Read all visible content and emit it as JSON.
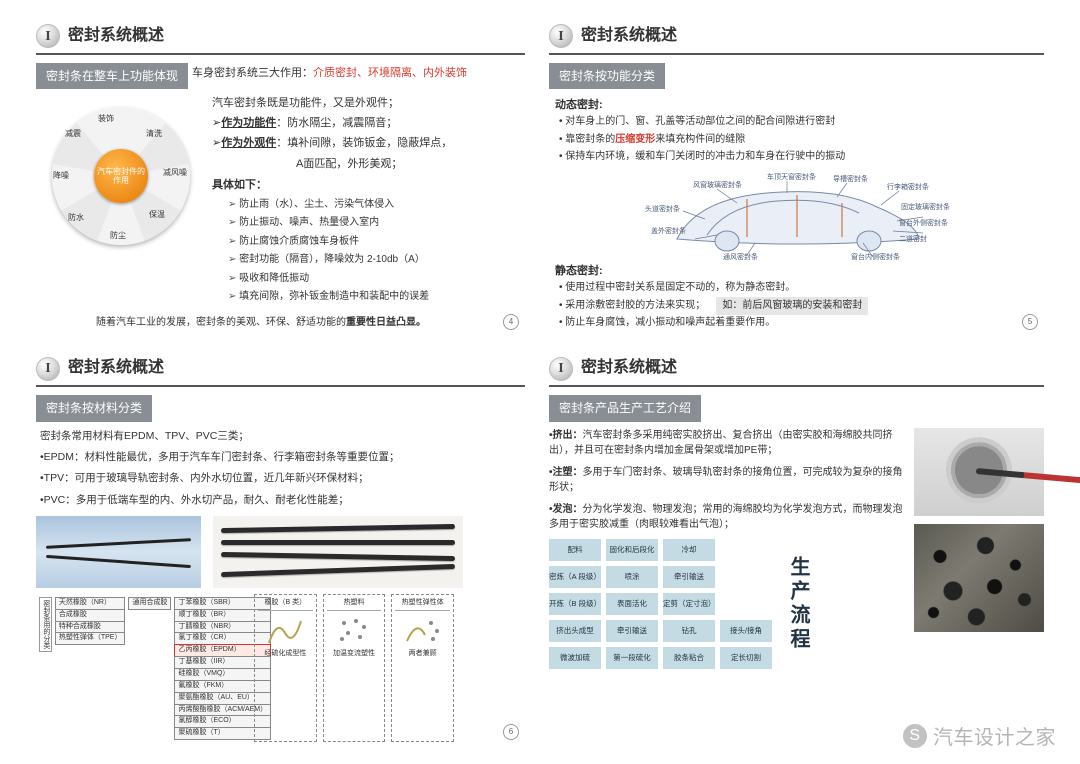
{
  "common": {
    "headerIconGlyph": "I",
    "headerTitle": "密封系统概述"
  },
  "slide1": {
    "subhead": "密封条在整车上功能体现",
    "topline_prefix": "车身密封系统三大作用：",
    "topline_highlight": "介质密封、环境隔离、内外装饰",
    "line2": "汽车密封条既是功能件，又是外观件；",
    "func_label": "作为功能件",
    "func_text": "：防水隔尘，减震隔音；",
    "appr_label": "作为外观件",
    "appr_text_a": "：填补间隙，装饰钣金，隐蔽焊点，",
    "appr_text_b": "A面匹配，外形美观；",
    "detail_label": "具体如下：",
    "bullets": [
      "防止雨（水）、尘土、污染气体侵入",
      "防止振动、噪声、热量侵入室内",
      "防止腐蚀介质腐蚀车身板件",
      "密封功能（隔音），降噪效为 2-10db（A）",
      "吸收和降低振动",
      "填充间隙，弥补钣金制造中和装配中的误差"
    ],
    "wheel_center": "汽车密封件的作用",
    "wheel_labels": [
      "装饰",
      "清洗",
      "减风噪",
      "保温",
      "防尘",
      "防水",
      "降噪",
      "减震"
    ],
    "footer_plain": "随着汽车工业的发展，密封条的美观、环保、舒适功能的",
    "footer_bold": "重要性日益凸显。",
    "page": "4"
  },
  "slide2": {
    "subhead": "密封条按功能分类",
    "sec1_title": "动态密封:",
    "sec1_items": [
      "对车身上的门、窗、孔盖等活动部位之间的配合间隙进行密封"
    ],
    "sec1_item2_pre": "靠密封条的",
    "sec1_item2_red": "压缩变形",
    "sec1_item2_post": "来填充构件间的缝隙",
    "sec1_item3": "保持车内环境，缓和车门关闭时的冲击力和车身在行驶中的振动",
    "car_labels": {
      "a": "车顶天窗密封条",
      "b": "前盖板密封条",
      "c": "导槽密封条",
      "d": "行李箱密封条",
      "e": "风窗玻璃密封条",
      "f": "固定玻璃密封条",
      "g": "头道密封条",
      "h": "窗台外侧密封条",
      "i": "盖外密封条",
      "j": "二道密封",
      "k": "通风密封条",
      "l": "窗台内侧密封条"
    },
    "sec2_title": "静态密封:",
    "sec2_items": [
      "使用过程中密封关系是固定不动的，称为静态密封。",
      "采用涂敷密封胶的方法来实现；",
      "防止车身腐蚀，减小振动和噪声起着重要作用。"
    ],
    "sec2_rightbox": "如：前后风窗玻璃的安装和密封",
    "page": "5"
  },
  "slide3": {
    "subhead": "密封条按材料分类",
    "line1": "密封条常用材料有EPDM、TPV、PVC三类；",
    "line_epdm": "•EPDM：材料性能最优，多用于汽车车门密封条、行李箱密封条等重要位置；",
    "line_tpv": "•TPV：可用于玻璃导轨密封条、内外水切位置，近几年新兴环保材料；",
    "line_pvc": "•PVC：多用于低端车型的内、外水切产品，耐久、耐老化性能差；",
    "tree": {
      "root": "密封条用的分类",
      "l1": [
        "天然橡胶（NR）",
        "合成橡胶",
        "特种合成橡胶",
        "热塑性弹体（TPE）"
      ],
      "l1b": "通用合成胶",
      "l2": [
        "丁苯橡胶（SBR）",
        "顺丁橡胶（BR）",
        "丁腈橡胶（NBR）",
        "氯丁橡胶（CR）",
        "乙丙橡胶（EPDM）",
        "丁基橡胶（IIR）",
        "硅橡胶（VMQ）",
        "氟橡胶（FKM）",
        "聚氨酯橡胶（AU、EU）",
        "丙烯酸酯橡胶（ACM/AEM）",
        "氯醇橡胶（ECO）",
        "聚硫橡胶（T）"
      ],
      "highlight_idx": 4
    },
    "side_boxes": [
      {
        "h": "橡胶（B 类）",
        "sub": "经硫化成型性"
      },
      {
        "h": "热塑料",
        "sub": "加温变流塑性"
      },
      {
        "h": "热塑性弹性体",
        "sub": "两者兼顾"
      }
    ],
    "page": "6"
  },
  "slide4": {
    "subhead": "密封条产品生产工艺介绍",
    "items": [
      {
        "k": "•挤出：",
        "t": "汽车密封条多采用纯密实胶挤出、复合挤出（由密实胶和海绵胶共同挤出），并且可在密封条内增加金属骨架或增加PE带；"
      },
      {
        "k": "•注塑：",
        "t": "多用于车门密封条、玻璃导轨密封条的接角位置，可完成较为复杂的接角形状；"
      },
      {
        "k": "•发泡：",
        "t": "分为化学发泡、物理发泡；常用的海绵胶均为化学发泡方式，而物理发泡多用于密实胶减重（肉眼较难看出气泡）；"
      }
    ],
    "flow_label": "生产流程",
    "flow_cells": [
      "配料",
      "固化和后段化",
      "冷却",
      "",
      "密炼（A 段级）",
      "喷涂",
      "牵引输送",
      "",
      "开炼（B 段级）",
      "表面活化",
      "定剪（定寸泡）",
      "",
      "挤出头成型",
      "牵引输送",
      "钻孔",
      "接头/接角",
      "微波加硫",
      "第一段硫化",
      "胶条粘合",
      "定长切割"
    ],
    "flow_colors": {
      "cell_bg": "#c5dbe3",
      "text": "#234158"
    },
    "page": ""
  },
  "watermark": {
    "icon": "S",
    "text": "汽车设计之家"
  }
}
